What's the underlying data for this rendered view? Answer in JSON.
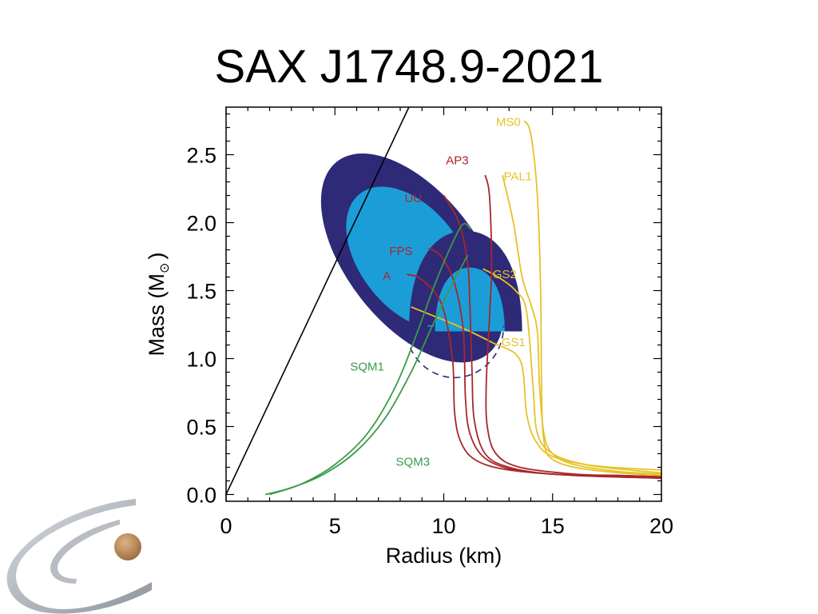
{
  "slide": {
    "title": "SAX J1748.9-2021"
  },
  "colors": {
    "yellow": "#e6c229",
    "red": "#a8262b",
    "green": "#3a9a4a",
    "dark_blue": "#2e2a78",
    "light_blue": "#1b9ed8",
    "logo_gray": "#9aa0a8",
    "logo_ball": "#c08a5a"
  },
  "chart_data": {
    "type": "line",
    "xlabel": "Radius (km)",
    "ylabel_main": "Mass (M",
    "ylabel_sub": "⊙",
    "ylabel_end": ")",
    "xlim": [
      0,
      20
    ],
    "ylim": [
      -0.05,
      2.85
    ],
    "x_ticks": [
      0,
      5,
      10,
      15,
      20
    ],
    "x_tick_labels": [
      "0",
      "5",
      "10",
      "15",
      "20"
    ],
    "y_ticks": [
      0.0,
      0.5,
      1.0,
      1.5,
      2.0,
      2.5
    ],
    "y_tick_labels": [
      "0.0",
      "0.5",
      "1.0",
      "1.5",
      "2.0",
      "2.5"
    ],
    "causality_line": [
      [
        0,
        0
      ],
      [
        8.4,
        2.85
      ]
    ],
    "series": [
      {
        "name": "MS0",
        "color": "yellow",
        "points": [
          [
            13.7,
            2.75
          ],
          [
            14.0,
            2.65
          ],
          [
            14.3,
            2.2
          ],
          [
            14.45,
            1.5
          ],
          [
            14.5,
            0.7
          ],
          [
            14.6,
            0.4
          ],
          [
            14.9,
            0.27
          ],
          [
            16,
            0.2
          ],
          [
            18,
            0.16
          ],
          [
            20,
            0.14
          ]
        ]
      },
      {
        "name": "PAL1",
        "color": "yellow",
        "points": [
          [
            12.7,
            2.35
          ],
          [
            13.2,
            2.0
          ],
          [
            13.6,
            1.6
          ],
          [
            14.0,
            1.4
          ],
          [
            14.3,
            1.2
          ],
          [
            14.4,
            0.8
          ],
          [
            14.6,
            0.45
          ],
          [
            15,
            0.3
          ],
          [
            16,
            0.22
          ],
          [
            18,
            0.17
          ],
          [
            20,
            0.15
          ]
        ]
      },
      {
        "name": "GS2",
        "color": "yellow",
        "points": [
          [
            11.8,
            1.66
          ],
          [
            12.5,
            1.6
          ],
          [
            13.3,
            1.5
          ],
          [
            13.8,
            1.35
          ],
          [
            14.1,
            0.8
          ],
          [
            14.3,
            0.45
          ],
          [
            15,
            0.3
          ],
          [
            16.5,
            0.22
          ],
          [
            18.5,
            0.18
          ],
          [
            20,
            0.16
          ]
        ]
      },
      {
        "name": "GS1",
        "color": "yellow",
        "points": [
          [
            8.5,
            1.38
          ],
          [
            10.5,
            1.25
          ],
          [
            12.2,
            1.12
          ],
          [
            13.5,
            0.99
          ],
          [
            13.8,
            0.6
          ],
          [
            14.2,
            0.4
          ],
          [
            15,
            0.28
          ],
          [
            17,
            0.21
          ],
          [
            20,
            0.18
          ]
        ]
      },
      {
        "name": "AP3",
        "color": "red",
        "points": [
          [
            11.9,
            2.35
          ],
          [
            12.1,
            2.2
          ],
          [
            12.2,
            1.7
          ],
          [
            12.1,
            1.3
          ],
          [
            11.95,
            0.8
          ],
          [
            12.0,
            0.5
          ],
          [
            12.4,
            0.3
          ],
          [
            13.5,
            0.2
          ],
          [
            16,
            0.15
          ],
          [
            18,
            0.14
          ],
          [
            20,
            0.13
          ]
        ]
      },
      {
        "name": "UU",
        "color": "red",
        "points": [
          [
            10.0,
            2.2
          ],
          [
            10.7,
            2.0
          ],
          [
            11.1,
            1.7
          ],
          [
            11.2,
            1.4
          ],
          [
            11.3,
            0.9
          ],
          [
            11.4,
            0.55
          ],
          [
            11.9,
            0.3
          ],
          [
            13,
            0.2
          ],
          [
            15,
            0.15
          ],
          [
            18,
            0.14
          ],
          [
            20,
            0.13
          ]
        ]
      },
      {
        "name": "FPS",
        "color": "red",
        "points": [
          [
            9.3,
            1.81
          ],
          [
            9.9,
            1.75
          ],
          [
            10.5,
            1.55
          ],
          [
            10.9,
            1.2
          ],
          [
            11.0,
            0.7
          ],
          [
            11.2,
            0.45
          ],
          [
            11.8,
            0.28
          ],
          [
            13,
            0.19
          ],
          [
            15,
            0.15
          ],
          [
            18,
            0.13
          ],
          [
            20,
            0.12
          ]
        ]
      },
      {
        "name": "A",
        "color": "red",
        "points": [
          [
            8.3,
            1.62
          ],
          [
            9.0,
            1.58
          ],
          [
            9.9,
            1.4
          ],
          [
            10.4,
            1.0
          ],
          [
            10.5,
            0.6
          ],
          [
            10.8,
            0.38
          ],
          [
            11.5,
            0.25
          ],
          [
            13,
            0.18
          ],
          [
            16,
            0.14
          ],
          [
            20,
            0.12
          ]
        ]
      },
      {
        "name": "SQM1",
        "color": "green",
        "points": [
          [
            2.0,
            0.0
          ],
          [
            3.5,
            0.08
          ],
          [
            5.0,
            0.22
          ],
          [
            6.5,
            0.45
          ],
          [
            7.8,
            0.8
          ],
          [
            8.8,
            1.2
          ],
          [
            9.6,
            1.55
          ],
          [
            10.4,
            1.85
          ],
          [
            10.9,
            1.99
          ],
          [
            11.25,
            1.95
          ]
        ]
      },
      {
        "name": "SQM3",
        "color": "green",
        "points": [
          [
            1.8,
            0.0
          ],
          [
            3.0,
            0.05
          ],
          [
            4.5,
            0.15
          ],
          [
            6.0,
            0.32
          ],
          [
            7.3,
            0.56
          ],
          [
            8.5,
            0.9
          ],
          [
            9.5,
            1.25
          ],
          [
            10.3,
            1.52
          ],
          [
            10.9,
            1.7
          ],
          [
            11.1,
            1.76
          ]
        ]
      }
    ],
    "series_labels": [
      {
        "text": "MS0",
        "color": "yellow",
        "x": 12.4,
        "y": 2.74
      },
      {
        "text": "PAL1",
        "color": "yellow",
        "x": 12.75,
        "y": 2.34
      },
      {
        "text": "AP3",
        "color": "red",
        "x": 10.1,
        "y": 2.46
      },
      {
        "text": "UU",
        "color": "red",
        "x": 8.2,
        "y": 2.18
      },
      {
        "text": "FPS",
        "color": "red",
        "x": 7.5,
        "y": 1.79
      },
      {
        "text": "A",
        "color": "red",
        "x": 7.2,
        "y": 1.61
      },
      {
        "text": "GS2",
        "color": "yellow",
        "x": 12.25,
        "y": 1.62
      },
      {
        "text": "GS1",
        "color": "yellow",
        "x": 12.65,
        "y": 1.12
      },
      {
        "text": "SQM1",
        "color": "green",
        "x": 5.7,
        "y": 0.94
      },
      {
        "text": "SQM3",
        "color": "green",
        "x": 7.8,
        "y": 0.24
      }
    ],
    "confidence_regions": [
      {
        "kind": "ellipse",
        "level": "outer",
        "color": "dark_blue",
        "cx": 8.55,
        "cy": 1.74,
        "rx": 3.0,
        "ry": 0.3,
        "angle_deg": -38
      },
      {
        "kind": "ellipse",
        "level": "inner",
        "color": "light_blue",
        "cx": 8.45,
        "cy": 1.74,
        "rx": 2.3,
        "ry": 0.2,
        "angle_deg": -38
      },
      {
        "kind": "lobe",
        "level": "outer",
        "color": "dark_blue",
        "x_range": [
          8.4,
          13.6
        ],
        "y_cut": 1.2,
        "peak": 1.94
      },
      {
        "kind": "lobe",
        "level": "inner",
        "color": "light_blue",
        "x_range": [
          9.6,
          12.8
        ],
        "y_cut": 1.2,
        "peak": 1.67
      }
    ],
    "dashed_circle": {
      "color": "dark_blue",
      "cx": 10.5,
      "cy": 1.24,
      "r_x": 2.25,
      "r_y": 0.38
    }
  }
}
